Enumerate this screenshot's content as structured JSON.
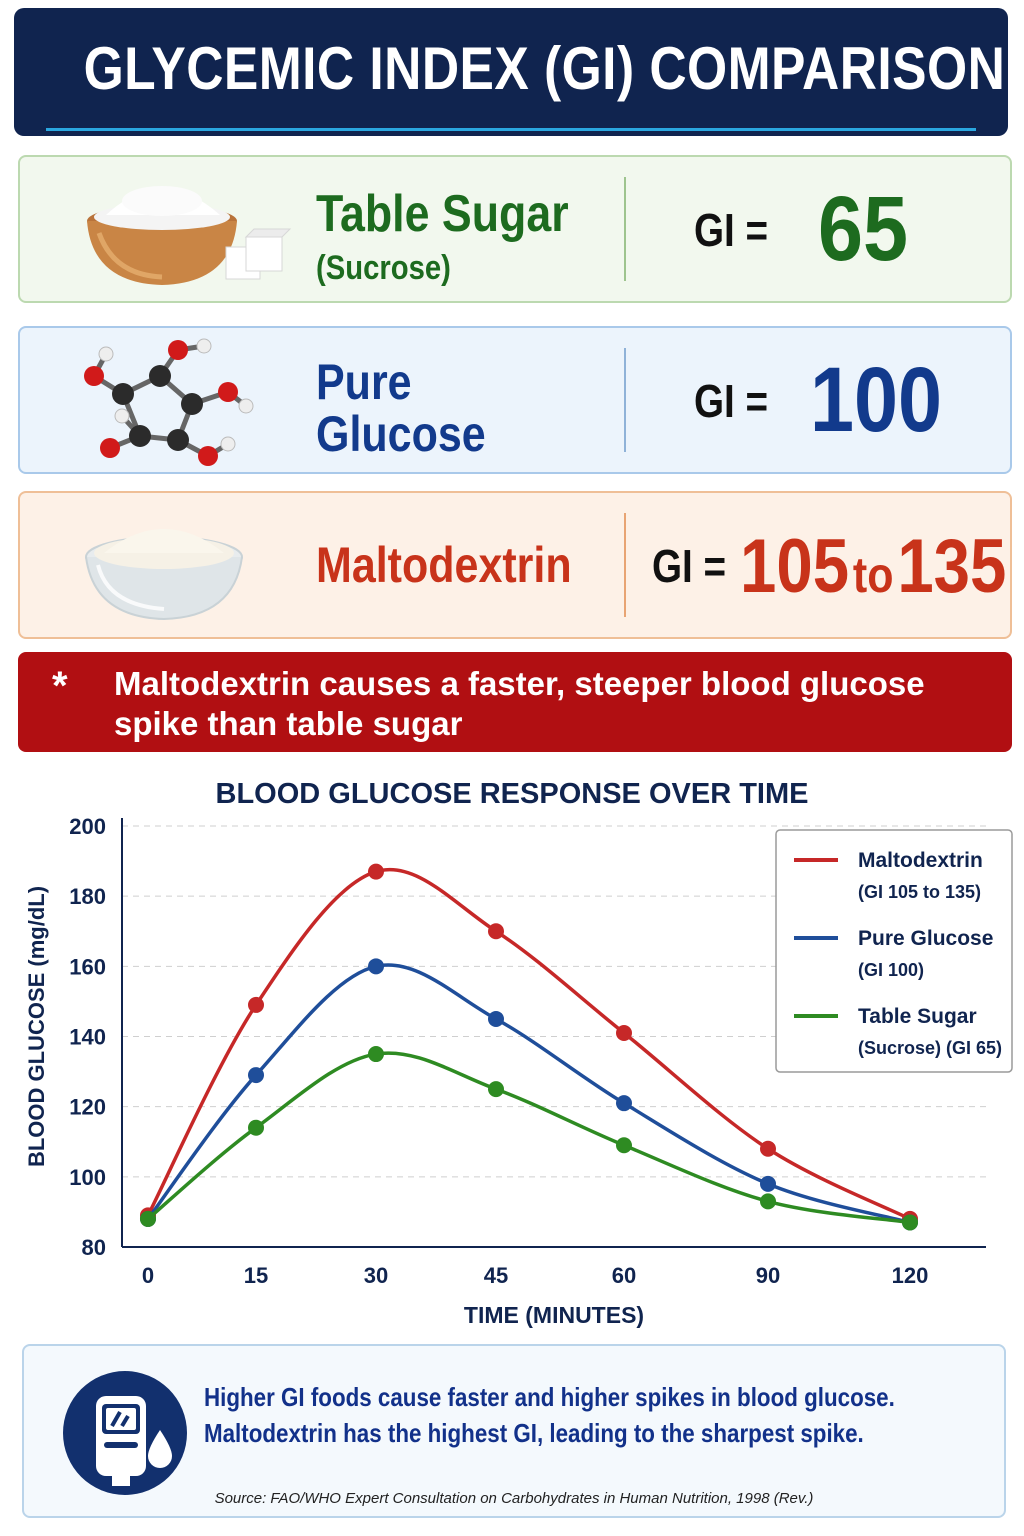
{
  "header": {
    "title": "GLYCEMIC INDEX (GI) COMPARISON"
  },
  "foods": [
    {
      "name": "Table Sugar",
      "subname": "(Sucrose)",
      "gi_label": "GI =",
      "gi_value": "65",
      "color": "#1d6b1f"
    },
    {
      "name": "Pure",
      "subname": "Glucose",
      "gi_label": "GI =",
      "gi_value": "100",
      "color": "#123a8c"
    },
    {
      "name": "Maltodextrin",
      "gi_label": "GI =",
      "gi_value": "105",
      "gi_to": "to",
      "gi_value2": "135",
      "color": "#c8331a"
    }
  ],
  "callout": {
    "star": "*",
    "text": "Maltodextrin causes a faster, steeper blood glucose spike than table sugar"
  },
  "chart_data": {
    "type": "line",
    "title": "BLOOD GLUCOSE RESPONSE OVER TIME",
    "xlabel": "TIME (MINUTES)",
    "ylabel": "BLOOD GLUCOSE (mg/dL)",
    "x": [
      0,
      15,
      30,
      45,
      60,
      90,
      120
    ],
    "x_tick_labels": [
      "0",
      "15",
      "30",
      "45",
      "60",
      "90",
      "120"
    ],
    "ylim": [
      80,
      200
    ],
    "y_ticks": [
      80,
      100,
      120,
      140,
      160,
      180,
      200
    ],
    "grid": true,
    "legend_position": "top-right",
    "series": [
      {
        "name": "Maltodextrin",
        "legend_sub": "(GI 105 to 135)",
        "color": "#c62828",
        "values": [
          89,
          149,
          187,
          170,
          141,
          108,
          88
        ]
      },
      {
        "name": "Pure Glucose",
        "legend_sub": "(GI 100)",
        "color": "#1f4e9a",
        "values": [
          88,
          129,
          160,
          145,
          121,
          98,
          87
        ]
      },
      {
        "name": "Table Sugar",
        "legend_sub": "(Sucrose) (GI 65)",
        "color": "#2e8b22",
        "values": [
          88,
          114,
          135,
          125,
          109,
          93,
          87
        ]
      }
    ]
  },
  "footer": {
    "line1": "Higher GI foods cause faster and higher spikes in blood glucose.",
    "line2": "Maltodextrin has the highest GI, leading to the sharpest spike.",
    "source": "Source: FAO/WHO Expert Consultation on Carbohydrates in Human Nutrition, 1998 (Rev.)"
  }
}
